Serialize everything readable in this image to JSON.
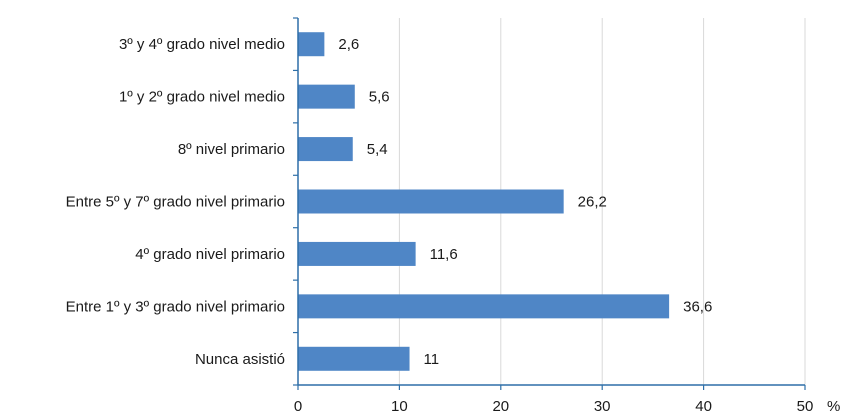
{
  "chart_data": {
    "type": "bar",
    "orientation": "horizontal",
    "title": "",
    "xlabel": "",
    "ylabel": "",
    "unit": "%",
    "categories": [
      "3º y 4º grado nivel medio",
      "1º y 2º grado nivel medio",
      "8º nivel primario",
      "Entre 5º y 7º grado nivel primario",
      "4º grado nivel primario",
      "Entre 1º y 3º grado nivel primario",
      "Nunca asistió"
    ],
    "values": [
      2.6,
      5.6,
      5.4,
      26.2,
      11.6,
      36.6,
      11
    ],
    "value_labels": [
      "2,6",
      "5,6",
      "5,4",
      "26,2",
      "11,6",
      "36,6",
      "11"
    ],
    "xlim": [
      0,
      50
    ],
    "xticks": [
      0,
      10,
      20,
      30,
      40,
      50
    ],
    "xtick_labels": [
      "0",
      "10",
      "20",
      "30",
      "40",
      "50"
    ],
    "grid": "vertical",
    "colors": {
      "bar": "#4f86c6",
      "axis": "#2e6fa8",
      "grid": "#d9d9d9"
    }
  }
}
